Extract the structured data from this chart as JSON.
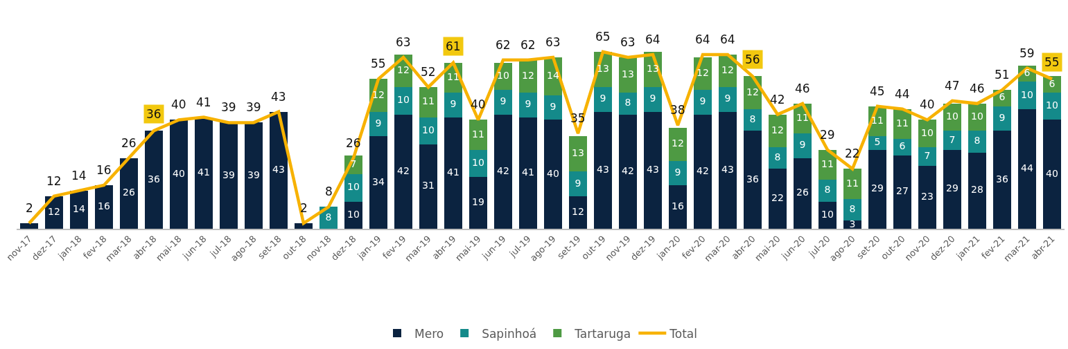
{
  "chart_data": {
    "type": "bar",
    "stacked": true,
    "legend": "bottom",
    "categories": [
      "nov-17",
      "dez-17",
      "jan-18",
      "fev-18",
      "mar-18",
      "abr-18",
      "mai-18",
      "jun-18",
      "jul-18",
      "ago-18",
      "set-18",
      "out-18",
      "nov-18",
      "dez-18",
      "jan-19",
      "fev-19",
      "mar-19",
      "abr-19",
      "mai-19",
      "jun-19",
      "jul-19",
      "ago-19",
      "set-19",
      "out-19",
      "nov-19",
      "dez-19",
      "jan-20",
      "fev-20",
      "mar-20",
      "abr-20",
      "mai-20",
      "jun-20",
      "jul-20",
      "ago-20",
      "set-20",
      "out-20",
      "nov-20",
      "dez-20",
      "jan-21",
      "fev-21",
      "mar-21",
      "abr-21"
    ],
    "series": [
      {
        "name": "Mero",
        "color": "#0b2340",
        "values": [
          2,
          12,
          14,
          16,
          26,
          36,
          40,
          41,
          39,
          39,
          43,
          2,
          0,
          10,
          34,
          42,
          31,
          41,
          19,
          42,
          41,
          40,
          12,
          43,
          42,
          43,
          16,
          42,
          43,
          36,
          22,
          26,
          10,
          3,
          29,
          27,
          23,
          29,
          28,
          36,
          44,
          40
        ],
        "value_labels": [
          null,
          "12",
          "14",
          "16",
          "26",
          "36",
          "40",
          "41",
          "39",
          "39",
          "43",
          null,
          null,
          "10",
          "34",
          "42",
          "31",
          "41",
          "19",
          "42",
          "41",
          "40",
          "12",
          "43",
          "42",
          "43",
          "16",
          "42",
          "43",
          "36",
          "22",
          "26",
          "10",
          "3",
          "29",
          "27",
          "23",
          "29",
          "28",
          "36",
          "44",
          "40"
        ]
      },
      {
        "name": "Sapinhoá",
        "color": "#148a8a",
        "values": [
          0,
          0,
          0,
          0,
          0,
          0,
          0,
          0,
          0,
          0,
          0,
          0,
          8,
          10,
          9,
          10,
          10,
          9,
          10,
          9,
          9,
          9,
          9,
          9,
          8,
          9,
          9,
          9,
          9,
          8,
          8,
          9,
          8,
          8,
          5,
          6,
          7,
          7,
          8,
          9,
          10,
          10
        ],
        "value_labels": [
          null,
          null,
          null,
          null,
          null,
          null,
          null,
          null,
          null,
          null,
          null,
          null,
          "8",
          "10",
          "9",
          "10",
          "10",
          "9",
          "10",
          "9",
          "9",
          "9",
          "9",
          "9",
          "8",
          "9",
          "9",
          "9",
          "9",
          "8",
          "8",
          "9",
          "8",
          "8",
          "5",
          "6",
          "7",
          "7",
          "8",
          "9",
          "10",
          "10"
        ]
      },
      {
        "name": "Tartaruga",
        "color": "#4e9a43",
        "values": [
          0,
          0,
          0,
          0,
          0,
          0,
          0,
          0,
          0,
          0,
          0,
          0,
          0,
          7,
          12,
          12,
          11,
          11,
          11,
          10,
          12,
          14,
          13,
          13,
          13,
          13,
          12,
          12,
          12,
          12,
          12,
          11,
          11,
          11,
          11,
          11,
          10,
          10,
          10,
          6,
          6,
          6
        ],
        "value_labels": [
          null,
          null,
          null,
          null,
          null,
          null,
          null,
          null,
          null,
          null,
          null,
          null,
          null,
          "7",
          "12",
          "12",
          "11",
          "11",
          "11",
          "10",
          "12",
          "14",
          "13",
          "13",
          "13",
          "13",
          "12",
          "12",
          "12",
          "12",
          "12",
          "11",
          "11",
          "11",
          "11",
          "11",
          "10",
          "10",
          "10",
          "6",
          "6",
          "6"
        ]
      },
      {
        "name": "Total",
        "type": "line",
        "color": "#f7b200",
        "line_style": "solid",
        "values": [
          2,
          12,
          14,
          16,
          26,
          36,
          40,
          41,
          39,
          39,
          43,
          2,
          8,
          26,
          55,
          63,
          52,
          61,
          40,
          62,
          62,
          63,
          35,
          65,
          63,
          64,
          38,
          64,
          64,
          56,
          42,
          46,
          29,
          22,
          45,
          44,
          40,
          47,
          46,
          51,
          59,
          55
        ],
        "value_labels": [
          "2",
          "12",
          "14",
          "16",
          "26",
          null,
          "40",
          "41",
          "39",
          "39",
          "43",
          "2",
          "8",
          "26",
          "55",
          "63",
          "52",
          null,
          "40",
          "62",
          "62",
          "63",
          "35",
          "65",
          "63",
          "64",
          "38",
          "64",
          "64",
          null,
          "42",
          "46",
          "29",
          "22",
          "45",
          "44",
          "40",
          "47",
          "46",
          "51",
          "59",
          null
        ]
      }
    ],
    "annotations": [
      {
        "text": "36",
        "x": "abr-18",
        "y": 36
      },
      {
        "text": "61",
        "x": "abr-19",
        "y": 61
      },
      {
        "text": "56",
        "x": "abr-20",
        "y": 56
      },
      {
        "text": "55",
        "x": "abr-21",
        "y": 55
      }
    ]
  }
}
